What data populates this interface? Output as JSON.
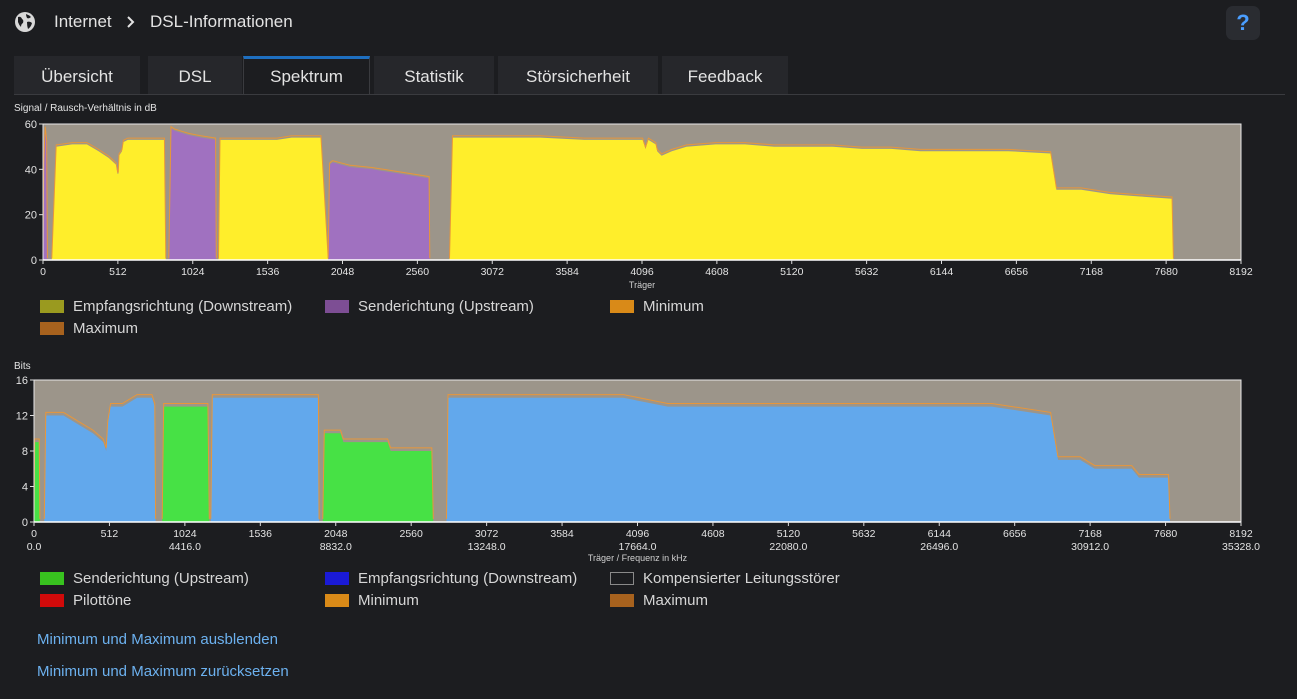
{
  "header": {
    "globe_icon": "globe-icon",
    "breadcrumb": [
      "Internet",
      "DSL-Informationen"
    ],
    "help_label": "?"
  },
  "tabs": [
    "Übersicht",
    "DSL",
    "Spektrum",
    "Statistik",
    "Störsicherheit",
    "Feedback"
  ],
  "active_tab": "Spektrum",
  "colors": {
    "background": "#1c1d20",
    "plot_bg": "#9c958a",
    "yellow": "#ffee2b",
    "purple": "#a071c0",
    "blue": "#62a8ec",
    "green": "#47e145",
    "orange": "#e8963a",
    "link": "#6cb1ef",
    "accent": "#1e6fc0"
  },
  "chart_data": [
    {
      "type": "area",
      "title": "Signal / Rausch-Verhältnis in dB",
      "xlabel": "Träger",
      "ylabel": "",
      "xlim": [
        0,
        8192
      ],
      "ylim": [
        0,
        60
      ],
      "x_ticks": [
        0,
        512,
        1024,
        1536,
        2048,
        2560,
        3072,
        3584,
        4096,
        4608,
        5120,
        5632,
        6144,
        6656,
        7168,
        7680,
        8192
      ],
      "y_ticks": [
        0,
        20,
        40,
        60
      ],
      "series": [
        {
          "name": "Empfangsrichtung (Downstream)",
          "color": "#ffee2b",
          "segments": [
            [
              [
                60,
                0
              ],
              [
                90,
                50
              ],
              [
                200,
                51
              ],
              [
                300,
                51
              ],
              [
                380,
                48
              ],
              [
                450,
                45
              ],
              [
                500,
                42
              ],
              [
                510,
                38
              ],
              [
                515,
                38
              ],
              [
                520,
                46
              ],
              [
                540,
                48
              ],
              [
                550,
                52
              ],
              [
                580,
                53
              ],
              [
                700,
                53
              ],
              [
                830,
                53
              ],
              [
                840,
                0
              ]
            ],
            [
              [
                1200,
                0
              ],
              [
                1210,
                53
              ],
              [
                1300,
                53
              ],
              [
                1450,
                53
              ],
              [
                1600,
                53
              ],
              [
                1700,
                54
              ],
              [
                1900,
                54
              ],
              [
                1950,
                0
              ]
            ],
            [
              [
                2780,
                0
              ],
              [
                2800,
                54
              ],
              [
                3000,
                54
              ],
              [
                3400,
                54
              ],
              [
                3700,
                53
              ],
              [
                3900,
                53
              ],
              [
                4100,
                53
              ],
              [
                4120,
                49
              ],
              [
                4140,
                53
              ],
              [
                4190,
                51
              ],
              [
                4200,
                48
              ],
              [
                4230,
                46
              ],
              [
                4300,
                48
              ],
              [
                4400,
                50
              ],
              [
                4600,
                51
              ],
              [
                4800,
                51
              ],
              [
                5000,
                50
              ],
              [
                5200,
                50
              ],
              [
                5400,
                50
              ],
              [
                5600,
                49
              ],
              [
                5800,
                49
              ],
              [
                6000,
                48
              ],
              [
                6300,
                48
              ],
              [
                6600,
                48
              ],
              [
                6890,
                47
              ],
              [
                6930,
                31
              ],
              [
                7100,
                31
              ],
              [
                7300,
                29
              ],
              [
                7500,
                28
              ],
              [
                7720,
                27
              ],
              [
                7730,
                0
              ]
            ]
          ]
        },
        {
          "name": "Senderichtung (Upstream)",
          "color": "#a071c0",
          "segments": [
            [
              [
                0,
                0
              ],
              [
                5,
                42
              ],
              [
                15,
                58
              ],
              [
                25,
                52
              ],
              [
                30,
                0
              ]
            ],
            [
              [
                860,
                0
              ],
              [
                875,
                58
              ],
              [
                900,
                57
              ],
              [
                950,
                56
              ],
              [
                1000,
                55
              ],
              [
                1080,
                54
              ],
              [
                1180,
                53
              ],
              [
                1185,
                0
              ]
            ],
            [
              [
                1950,
                0
              ],
              [
                1960,
                42
              ],
              [
                1980,
                43
              ],
              [
                2100,
                41
              ],
              [
                2250,
                40
              ],
              [
                2450,
                38
              ],
              [
                2640,
                36
              ],
              [
                2645,
                0
              ]
            ]
          ]
        }
      ]
    },
    {
      "type": "area",
      "title": "Bits",
      "xlabel": "Träger / Frequenz in kHz",
      "ylabel": "",
      "xlim": [
        0,
        8192
      ],
      "ylim": [
        0,
        16
      ],
      "x_ticks": [
        0,
        512,
        1024,
        1536,
        2048,
        2560,
        3072,
        3584,
        4096,
        4608,
        5120,
        5632,
        6144,
        6656,
        7168,
        7680,
        8192
      ],
      "freq_ticks": [
        {
          "carrier": 0,
          "label": "0.0"
        },
        {
          "carrier": 1024,
          "label": "4416.0"
        },
        {
          "carrier": 2048,
          "label": "8832.0"
        },
        {
          "carrier": 3072,
          "label": "13248.0"
        },
        {
          "carrier": 4096,
          "label": "17664.0"
        },
        {
          "carrier": 5120,
          "label": "22080.0"
        },
        {
          "carrier": 6144,
          "label": "26496.0"
        },
        {
          "carrier": 7168,
          "label": "30912.0"
        },
        {
          "carrier": 8192,
          "label": "35328.0"
        }
      ],
      "y_ticks": [
        0,
        4,
        8,
        12,
        16
      ],
      "series": [
        {
          "name": "Empfangsrichtung (Downstream)",
          "color": "#62a8ec",
          "segments": [
            [
              [
                70,
                0
              ],
              [
                80,
                12
              ],
              [
                150,
                12
              ],
              [
                200,
                12
              ],
              [
                300,
                11
              ],
              [
                400,
                10
              ],
              [
                470,
                9
              ],
              [
                490,
                8
              ],
              [
                500,
                11
              ],
              [
                520,
                13
              ],
              [
                600,
                13
              ],
              [
                700,
                14
              ],
              [
                800,
                14
              ],
              [
                820,
                13
              ],
              [
                825,
                0
              ]
            ],
            [
              [
                1200,
                0
              ],
              [
                1210,
                14
              ],
              [
                1300,
                14
              ],
              [
                1500,
                14
              ],
              [
                1700,
                14
              ],
              [
                1930,
                14
              ],
              [
                1935,
                0
              ]
            ],
            [
              [
                2800,
                0
              ],
              [
                2810,
                14
              ],
              [
                3000,
                14
              ],
              [
                3300,
                14
              ],
              [
                3700,
                14
              ],
              [
                4000,
                14
              ],
              [
                4300,
                13
              ],
              [
                4500,
                13
              ],
              [
                4800,
                13
              ],
              [
                5200,
                13
              ],
              [
                5500,
                13
              ],
              [
                6000,
                13
              ],
              [
                6500,
                13
              ],
              [
                6900,
                12
              ],
              [
                6950,
                7
              ],
              [
                7100,
                7
              ],
              [
                7200,
                6
              ],
              [
                7450,
                6
              ],
              [
                7500,
                5
              ],
              [
                7700,
                5
              ],
              [
                7710,
                0
              ]
            ]
          ]
        },
        {
          "name": "Senderichtung (Upstream)",
          "color": "#47e145",
          "segments": [
            [
              [
                0,
                0
              ],
              [
                5,
                9
              ],
              [
                35,
                9
              ],
              [
                40,
                0
              ]
            ],
            [
              [
                870,
                0
              ],
              [
                880,
                13
              ],
              [
                1000,
                13
              ],
              [
                1180,
                13
              ],
              [
                1190,
                0
              ]
            ],
            [
              [
                1960,
                0
              ],
              [
                1970,
                10
              ],
              [
                2080,
                10
              ],
              [
                2100,
                9
              ],
              [
                2400,
                9
              ],
              [
                2420,
                8
              ],
              [
                2600,
                8
              ],
              [
                2700,
                8
              ],
              [
                2710,
                0
              ]
            ]
          ]
        }
      ]
    }
  ],
  "legend1": [
    {
      "label": "Empfangsrichtung (Downstream)",
      "color": "#9a9a1f"
    },
    {
      "label": "Senderichtung (Upstream)",
      "color": "#7d4e94"
    },
    {
      "label": "Minimum",
      "color": "#d98a18"
    },
    {
      "label": "Maximum",
      "color": "#a7621e"
    }
  ],
  "legend2": [
    {
      "label": "Senderichtung (Upstream)",
      "color": "#38c21f"
    },
    {
      "label": "Empfangsrichtung (Downstream)",
      "color": "#1a1ad6"
    },
    {
      "label": "Kompensierter Leitungsstörer",
      "color": "#1c1d20"
    },
    {
      "label": "Pilottöne",
      "color": "#d10a0a"
    },
    {
      "label": "Minimum",
      "color": "#d98a18"
    },
    {
      "label": "Maximum",
      "color": "#a7621e"
    }
  ],
  "links": [
    "Minimum und Maximum ausblenden",
    "Minimum und Maximum zurücksetzen"
  ]
}
